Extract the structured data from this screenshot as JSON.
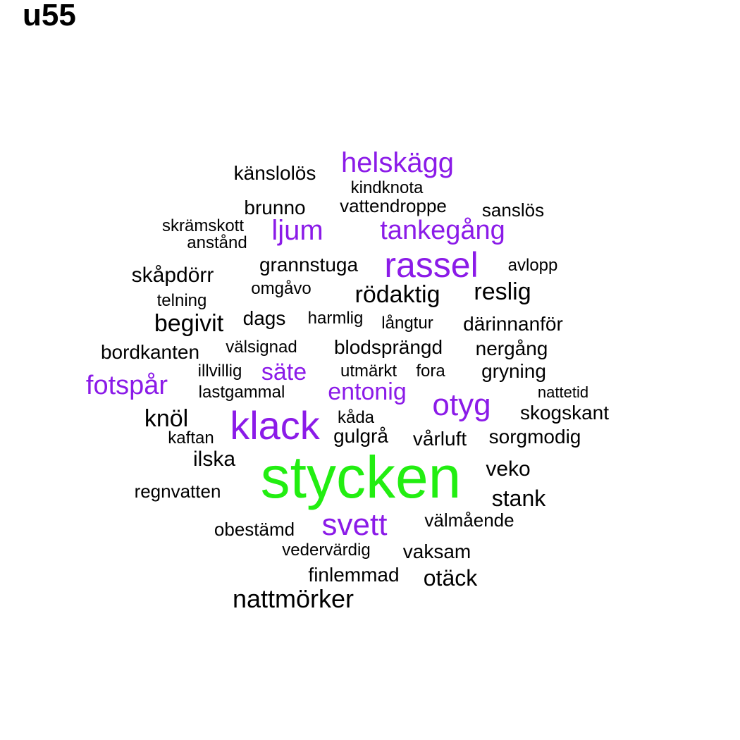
{
  "title": "u55",
  "colors": {
    "black": "#000000",
    "purple": "#8b1be8",
    "green": "#22ee11"
  },
  "words": [
    {
      "text": "stycken",
      "color": "green"
    },
    {
      "text": "klack",
      "color": "purple"
    },
    {
      "text": "rassel",
      "color": "purple"
    },
    {
      "text": "svett",
      "color": "purple"
    },
    {
      "text": "otyg",
      "color": "purple"
    },
    {
      "text": "helskägg",
      "color": "purple"
    },
    {
      "text": "tankegång",
      "color": "purple"
    },
    {
      "text": "ljum",
      "color": "purple"
    },
    {
      "text": "fotspår",
      "color": "purple"
    },
    {
      "text": "säte",
      "color": "purple"
    },
    {
      "text": "entonig",
      "color": "purple"
    },
    {
      "text": "nattmörker",
      "color": "black"
    },
    {
      "text": "känslolös",
      "color": "black"
    },
    {
      "text": "kindknota",
      "color": "black"
    },
    {
      "text": "brunno",
      "color": "black"
    },
    {
      "text": "vattendroppe",
      "color": "black"
    },
    {
      "text": "sanslös",
      "color": "black"
    },
    {
      "text": "skrämskott",
      "color": "black"
    },
    {
      "text": "anstånd",
      "color": "black"
    },
    {
      "text": "grannstuga",
      "color": "black"
    },
    {
      "text": "avlopp",
      "color": "black"
    },
    {
      "text": "skåpdörr",
      "color": "black"
    },
    {
      "text": "omgåvo",
      "color": "black"
    },
    {
      "text": "rödaktig",
      "color": "black"
    },
    {
      "text": "reslig",
      "color": "black"
    },
    {
      "text": "telning",
      "color": "black"
    },
    {
      "text": "begivit",
      "color": "black"
    },
    {
      "text": "dags",
      "color": "black"
    },
    {
      "text": "harmlig",
      "color": "black"
    },
    {
      "text": "långtur",
      "color": "black"
    },
    {
      "text": "därinnanför",
      "color": "black"
    },
    {
      "text": "bordkanten",
      "color": "black"
    },
    {
      "text": "välsignad",
      "color": "black"
    },
    {
      "text": "blodsprängd",
      "color": "black"
    },
    {
      "text": "nergång",
      "color": "black"
    },
    {
      "text": "illvillig",
      "color": "black"
    },
    {
      "text": "utmärkt",
      "color": "black"
    },
    {
      "text": "fora",
      "color": "black"
    },
    {
      "text": "gryning",
      "color": "black"
    },
    {
      "text": "lastgammal",
      "color": "black"
    },
    {
      "text": "nattetid",
      "color": "black"
    },
    {
      "text": "knöl",
      "color": "black"
    },
    {
      "text": "kåda",
      "color": "black"
    },
    {
      "text": "skogskant",
      "color": "black"
    },
    {
      "text": "kaftan",
      "color": "black"
    },
    {
      "text": "gulgrå",
      "color": "black"
    },
    {
      "text": "vårluft",
      "color": "black"
    },
    {
      "text": "sorgmodig",
      "color": "black"
    },
    {
      "text": "ilska",
      "color": "black"
    },
    {
      "text": "veko",
      "color": "black"
    },
    {
      "text": "regnvatten",
      "color": "black"
    },
    {
      "text": "stank",
      "color": "black"
    },
    {
      "text": "obestämd",
      "color": "black"
    },
    {
      "text": "välmående",
      "color": "black"
    },
    {
      "text": "vedervärdig",
      "color": "black"
    },
    {
      "text": "vaksam",
      "color": "black"
    },
    {
      "text": "finlemmad",
      "color": "black"
    },
    {
      "text": "otäck",
      "color": "black"
    }
  ]
}
